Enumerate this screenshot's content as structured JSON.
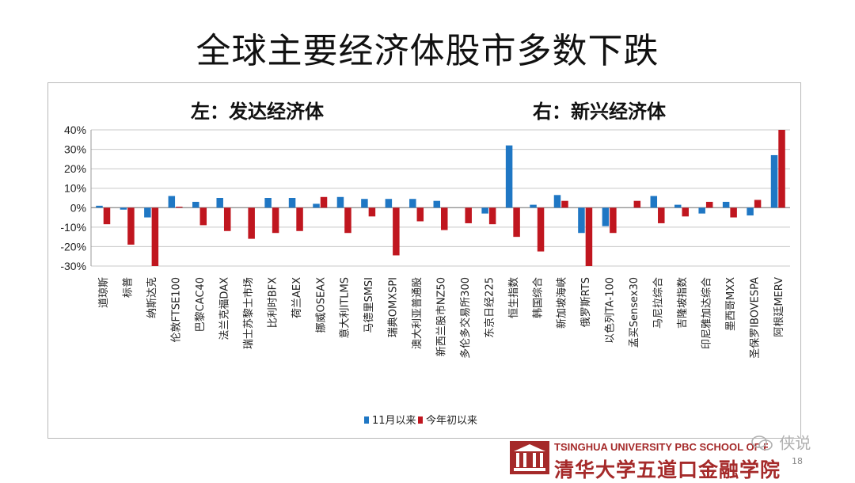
{
  "slide": {
    "title": "全球主要经济体股市多数下跌",
    "page_number": "18",
    "footer_en": "TSINGHUA UNIVERSITY PBC SCHOOL OF FINANCE",
    "footer_cn": "清华大学五道口金融学院",
    "watermark": "侠说"
  },
  "colors": {
    "series1": "#1f77c4",
    "series2": "#c0161f",
    "brand": "#a52a2a"
  },
  "chart_data": {
    "type": "bar",
    "annotations": [
      "左：发达经济体",
      "右：新兴经济体"
    ],
    "categories": [
      "道琼斯",
      "标普",
      "纳斯达克",
      "伦敦FTSE100",
      "巴黎CAC40",
      "法兰克福DAX",
      "瑞士苏黎士市场",
      "比利时BFX",
      "荷兰AEX",
      "挪威OSEAX",
      "意大利ITLMS",
      "马德里SMSI",
      "瑞典OMXSPI",
      "澳大利亚普通股",
      "新西兰股市NZ50",
      "多伦多交易所300",
      "东京日经225",
      "恒生指数",
      "韩国综合",
      "新加坡海峡",
      "俄罗斯RTS",
      "以色列TA-100",
      "孟买Sensex30",
      "马尼拉综合",
      "吉隆坡指数",
      "印尼雅加达综合",
      "墨西哥MXX",
      "圣保罗IBOVESPA",
      "阿根廷MERV"
    ],
    "series": [
      {
        "name": "11月以来",
        "values": [
          1,
          -1,
          -5,
          6,
          3,
          5,
          0,
          5,
          5,
          2,
          5.5,
          4.5,
          4.5,
          4.5,
          3.5,
          0,
          -3,
          32,
          1.5,
          6.5,
          -13,
          -9.5,
          0,
          6,
          1.5,
          -3,
          3,
          -4,
          27
        ]
      },
      {
        "name": "今年初以来",
        "values": [
          -8.5,
          -19,
          -30,
          0.5,
          -9,
          -12,
          -16,
          -13,
          -12,
          5.5,
          -13,
          -4.5,
          -24.5,
          -7,
          -11.5,
          -8,
          -8.5,
          -15,
          -22.5,
          3.5,
          -30,
          -13,
          3.5,
          -8,
          -4.5,
          3,
          -5,
          4,
          40
        ]
      }
    ],
    "y_ticks": [
      "40%",
      "30%",
      "20%",
      "10%",
      "0%",
      "-10%",
      "-20%",
      "-30%"
    ],
    "ylim": [
      -30,
      40
    ],
    "legend_position": "bottom-center",
    "grid": true
  }
}
